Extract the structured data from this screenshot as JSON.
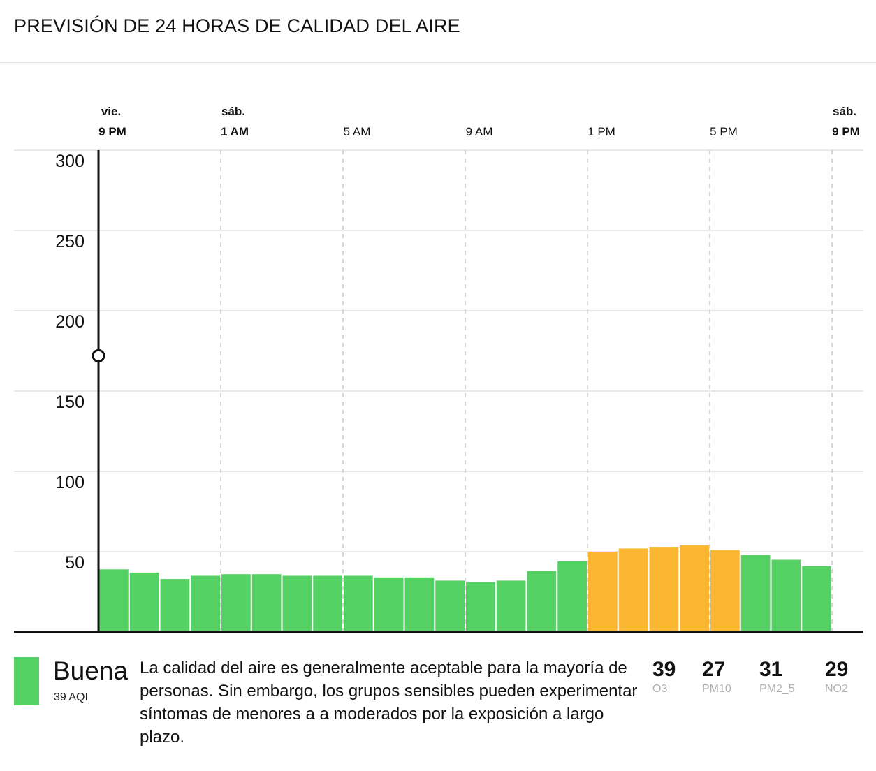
{
  "title": "PREVISIÓN DE 24 HORAS DE CALIDAD DEL AIRE",
  "colors": {
    "good": "#55d163",
    "moderate": "#fbb731",
    "grid": "#e2e2e2",
    "dashed": "#c9c9c9",
    "axis": "#111111"
  },
  "chart_data": {
    "type": "bar",
    "ylim": [
      0,
      300
    ],
    "yticks": [
      "300",
      "250",
      "200",
      "150",
      "100",
      "50"
    ],
    "ytick_values": [
      300,
      250,
      200,
      150,
      100,
      50
    ],
    "x_ticks": [
      {
        "day": "vie.",
        "time": "9 PM",
        "bold": true,
        "bar_index": 0
      },
      {
        "day": "sáb.",
        "time": "1 AM",
        "bold": true,
        "bar_index": 4
      },
      {
        "day": "",
        "time": "5 AM",
        "bold": false,
        "bar_index": 8
      },
      {
        "day": "",
        "time": "9 AM",
        "bold": false,
        "bar_index": 12
      },
      {
        "day": "",
        "time": "1 PM",
        "bold": false,
        "bar_index": 16
      },
      {
        "day": "",
        "time": "5 PM",
        "bold": false,
        "bar_index": 20
      },
      {
        "day": "sáb.",
        "time": "9 PM",
        "bold": true,
        "bar_index": 24
      }
    ],
    "values": [
      39,
      37,
      33,
      35,
      36,
      36,
      35,
      35,
      35,
      34,
      34,
      32,
      31,
      32,
      38,
      44,
      50,
      52,
      53,
      54,
      51,
      48,
      45,
      41
    ],
    "categories_per_bar": [
      "good",
      "good",
      "good",
      "good",
      "good",
      "good",
      "good",
      "good",
      "good",
      "good",
      "good",
      "good",
      "good",
      "good",
      "good",
      "good",
      "moderate",
      "moderate",
      "moderate",
      "moderate",
      "moderate",
      "good",
      "good",
      "good"
    ],
    "current_marker_value": 172
  },
  "footer": {
    "category": "Buena",
    "aqi_label": "39 AQI",
    "description": "La calidad del aire es generalmente aceptable para la mayoría de personas. Sin embargo, los grupos sensibles pueden experimentar síntomas de menores a a moderados por la exposición a largo plazo.",
    "pollutants": [
      {
        "value": "39",
        "name": "O3"
      },
      {
        "value": "27",
        "name": "PM10"
      },
      {
        "value": "31",
        "name": "PM2_5"
      },
      {
        "value": "29",
        "name": "NO2"
      }
    ]
  }
}
